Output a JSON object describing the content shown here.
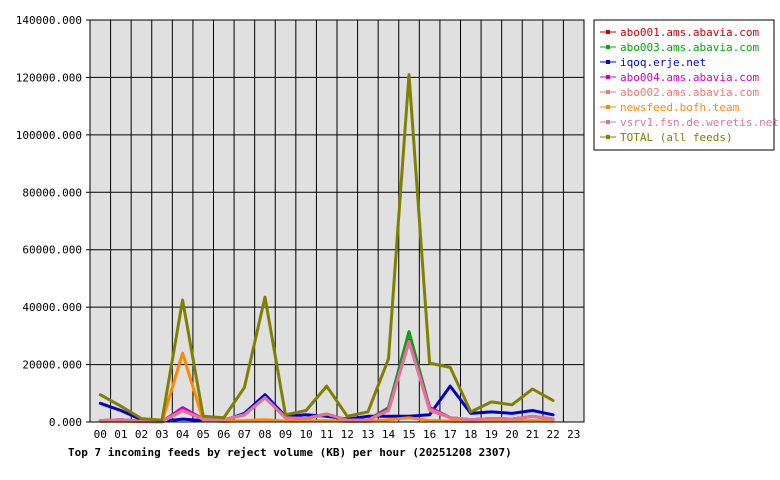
{
  "chart_data": {
    "type": "line",
    "title": "Top 7 incoming feeds by reject volume (KB) per hour (20251208 2307)",
    "xlabel": "",
    "ylabel": "",
    "x": [
      "00",
      "01",
      "02",
      "03",
      "04",
      "05",
      "06",
      "07",
      "08",
      "09",
      "10",
      "11",
      "12",
      "13",
      "14",
      "15",
      "16",
      "17",
      "18",
      "19",
      "20",
      "21",
      "22",
      "23"
    ],
    "ylim": [
      0,
      140000
    ],
    "yticks": [
      0,
      20000,
      40000,
      60000,
      80000,
      100000,
      120000,
      140000
    ],
    "ytick_labels": [
      "0.000",
      "20000.000",
      "40000.000",
      "60000.000",
      "80000.000",
      "100000.000",
      "120000.000",
      "140000.000"
    ],
    "grid": true,
    "legend_position": "right",
    "background": "#e0e0e0",
    "series": [
      {
        "name": "abo001.ams.abavia.com",
        "color": "#cc0000",
        "values": [
          500,
          800,
          200,
          100,
          4000,
          1000,
          800,
          2500,
          8500,
          1500,
          1200,
          2800,
          600,
          700,
          4000,
          28000,
          5000,
          1500,
          800,
          1200,
          1000,
          2000,
          1000,
          null
        ]
      },
      {
        "name": "abo003.ams.abavia.com",
        "color": "#00aa00",
        "values": [
          500,
          800,
          200,
          100,
          4500,
          1000,
          800,
          2500,
          9000,
          1500,
          1200,
          2800,
          600,
          700,
          5000,
          31500,
          5000,
          1500,
          800,
          1200,
          1000,
          2000,
          1000,
          null
        ]
      },
      {
        "name": "iqoq.erje.net",
        "color": "#0000cc",
        "values": [
          6500,
          4000,
          800,
          200,
          1000,
          500,
          500,
          3000,
          9500,
          2000,
          2500,
          2000,
          1000,
          2000,
          2000,
          2000,
          2500,
          12500,
          3000,
          3500,
          3000,
          4000,
          2500,
          null
        ]
      },
      {
        "name": "abo004.ams.abavia.com",
        "color": "#cc00cc",
        "values": [
          500,
          800,
          200,
          100,
          5000,
          1000,
          800,
          2500,
          8500,
          1500,
          1200,
          2800,
          600,
          700,
          4500,
          28500,
          5000,
          1500,
          800,
          1200,
          1000,
          2000,
          1000,
          null
        ]
      },
      {
        "name": "abo002.ams.abavia.com",
        "color": "#ee7777",
        "values": [
          500,
          800,
          200,
          100,
          4000,
          1000,
          800,
          2500,
          8500,
          1500,
          1200,
          2800,
          600,
          700,
          4000,
          28000,
          4500,
          1500,
          800,
          1200,
          1000,
          2000,
          1000,
          null
        ]
      },
      {
        "name": "newsfeed.bofh.team",
        "color": "#ff8800",
        "values": [
          200,
          300,
          100,
          100,
          24000,
          500,
          200,
          500,
          800,
          300,
          300,
          500,
          200,
          200,
          800,
          1500,
          500,
          300,
          200,
          300,
          300,
          500,
          300,
          null
        ]
      },
      {
        "name": "vsrv1.fsn.de.weretis.net",
        "color": "#dd7799",
        "values": [
          500,
          800,
          200,
          100,
          4000,
          1000,
          800,
          2500,
          8500,
          1500,
          1200,
          2800,
          600,
          700,
          4000,
          28000,
          4000,
          1500,
          800,
          1200,
          1000,
          2000,
          1000,
          null
        ]
      },
      {
        "name": "TOTAL (all feeds)",
        "color": "#808000",
        "values": [
          9500,
          5500,
          1200,
          600,
          42500,
          2000,
          1500,
          12000,
          43500,
          2500,
          4000,
          12500,
          2000,
          3500,
          22000,
          121000,
          20500,
          19000,
          3500,
          7000,
          6000,
          11500,
          7500,
          null
        ]
      }
    ]
  }
}
